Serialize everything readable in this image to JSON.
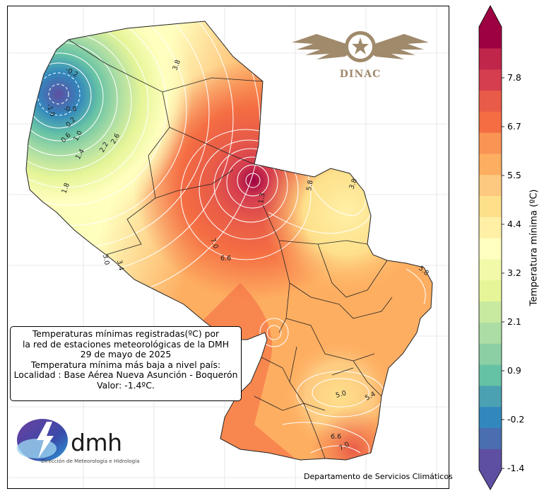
{
  "info_box": {
    "line1": "Temperaturas mínimas registradas(ºC) por",
    "line2": "la red de estaciones meteorológicas de la DMH",
    "line3": "29 de mayo de 2025",
    "line4": "Temperatura mínima más baja a nivel país:",
    "line5": "Localidad : Base Aérea Nueva Asunción - Boquerón",
    "line6": "Valor: -1.4ºC."
  },
  "credit": "Departamento de Servicios Climáticos",
  "logos": {
    "dinac": "DINAC",
    "dmh": "dmh",
    "dmh_subtitle": "Dirección de Meteorología e Hidrología"
  },
  "colorbar": {
    "label": "Temperatura mínima (ºC)",
    "min": -1.4,
    "max": 8.9,
    "ticks": [
      "7.8",
      "6.7",
      "5.5",
      "4.4",
      "3.2",
      "2.1",
      "0.9",
      "-0.2",
      "-1.4"
    ],
    "colors": [
      "#5e4fa2",
      "#4a6eb0",
      "#3288bd",
      "#4ba1b1",
      "#66c2a5",
      "#8ccfa4",
      "#abdda4",
      "#c8e9a0",
      "#e6f598",
      "#f2f9a9",
      "#ffffbf",
      "#fff0a6",
      "#fee08b",
      "#fdc980",
      "#fdae61",
      "#f99455",
      "#f46d43",
      "#e85b48",
      "#d53e4f",
      "#c0254a",
      "#9e0142"
    ]
  },
  "contour_labels": [
    "-0.2",
    "-1.0",
    "-0.6",
    "0.2",
    "0.6",
    "1.0",
    "1.4",
    "1.8",
    "2.2",
    "2.6",
    "3.0",
    "3.4",
    "3.8",
    "5.8",
    "3.8",
    "1.3",
    "7.0",
    "6.6",
    "5.8",
    "5.0",
    "5.4",
    "6.6",
    "7.0"
  ],
  "icons": {
    "dinac": "winged-star-emblem",
    "dmh": "lightning-cloud-logo"
  }
}
